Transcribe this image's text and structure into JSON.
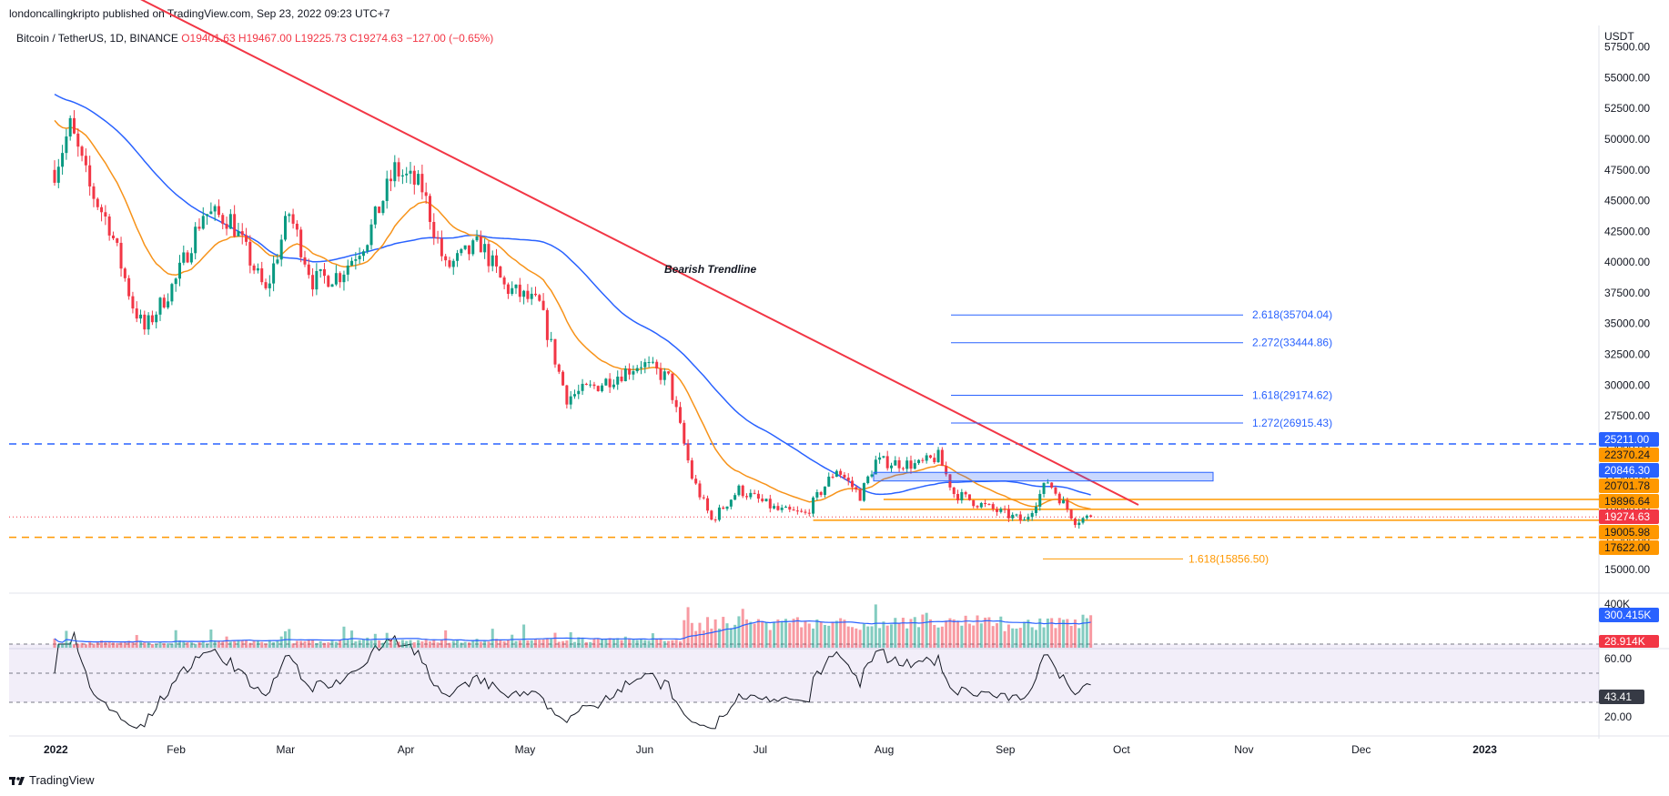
{
  "header": {
    "published_line": "londoncallingkripto published on TradingView.com, Sep 23, 2022 09:23 UTC+7"
  },
  "legend": {
    "symbol": "Bitcoin / TetherUS, 1D, BINANCE",
    "open": "O19401.63",
    "high": "H19467.00",
    "low": "L19225.73",
    "close": "C19274.63",
    "change": "−127.00 (−0.65%)"
  },
  "footer": {
    "brand": "TradingView",
    "logo_icon": "tradingview-logo-icon"
  },
  "chart_data": {
    "type": "candlestick",
    "symbol": "BTCUSDT",
    "interval": "1D",
    "exchange": "BINANCE",
    "currency": "USDT",
    "price_axis_ticks": [
      "57500.00",
      "55000.00",
      "52500.00",
      "50000.00",
      "47500.00",
      "45000.00",
      "42500.00",
      "40000.00",
      "37500.00",
      "35000.00",
      "32500.00",
      "30000.00",
      "27500.00",
      "25000.00",
      "22500.00",
      "20000.00",
      "17500.00",
      "15000.00"
    ],
    "price_range": [
      13000,
      60000
    ],
    "time_axis_labels": [
      "2022",
      "Feb",
      "Mar",
      "Apr",
      "May",
      "Jun",
      "Jul",
      "Aug",
      "Sep",
      "Oct",
      "Nov",
      "Dec",
      "2023"
    ],
    "price_path": [
      {
        "date": "2022-01-01",
        "close": 47500
      },
      {
        "date": "2022-01-05",
        "close": 51000
      },
      {
        "date": "2022-01-10",
        "close": 46000
      },
      {
        "date": "2022-01-15",
        "close": 43000
      },
      {
        "date": "2022-01-21",
        "close": 36500
      },
      {
        "date": "2022-01-24",
        "close": 34500
      },
      {
        "date": "2022-02-01",
        "close": 38500
      },
      {
        "date": "2022-02-08",
        "close": 44000
      },
      {
        "date": "2022-02-15",
        "close": 43500
      },
      {
        "date": "2022-02-24",
        "close": 37500
      },
      {
        "date": "2022-03-02",
        "close": 44000
      },
      {
        "date": "2022-03-08",
        "close": 38500
      },
      {
        "date": "2022-03-15",
        "close": 39000
      },
      {
        "date": "2022-03-22",
        "close": 42000
      },
      {
        "date": "2022-03-29",
        "close": 47500
      },
      {
        "date": "2022-04-05",
        "close": 46000
      },
      {
        "date": "2022-04-11",
        "close": 39500
      },
      {
        "date": "2022-04-20",
        "close": 41500
      },
      {
        "date": "2022-04-26",
        "close": 38000
      },
      {
        "date": "2022-05-05",
        "close": 36500
      },
      {
        "date": "2022-05-10",
        "close": 31000
      },
      {
        "date": "2022-05-12",
        "close": 29000
      },
      {
        "date": "2022-05-20",
        "close": 30000
      },
      {
        "date": "2022-05-31",
        "close": 31800
      },
      {
        "date": "2022-06-07",
        "close": 30500
      },
      {
        "date": "2022-06-13",
        "close": 22500
      },
      {
        "date": "2022-06-18",
        "close": 19000
      },
      {
        "date": "2022-06-25",
        "close": 21500
      },
      {
        "date": "2022-07-05",
        "close": 19800
      },
      {
        "date": "2022-07-12",
        "close": 19500
      },
      {
        "date": "2022-07-20",
        "close": 23200
      },
      {
        "date": "2022-07-26",
        "close": 21000
      },
      {
        "date": "2022-07-30",
        "close": 23800
      },
      {
        "date": "2022-08-10",
        "close": 23500
      },
      {
        "date": "2022-08-15",
        "close": 24200
      },
      {
        "date": "2022-08-19",
        "close": 21200
      },
      {
        "date": "2022-08-28",
        "close": 20000
      },
      {
        "date": "2022-09-06",
        "close": 18900
      },
      {
        "date": "2022-09-12",
        "close": 22200
      },
      {
        "date": "2022-09-19",
        "close": 19000
      },
      {
        "date": "2022-09-23",
        "close": 19274.63
      }
    ],
    "bearish_trendline": {
      "label": "Bearish Trendline",
      "start": {
        "date": "2021-12-29",
        "price": 60000
      },
      "end": {
        "date": "2022-09-25",
        "price": 20000
      }
    },
    "horizontal_levels": [
      {
        "price": 25211.0,
        "label": "25211.00",
        "color": "#2962ff",
        "style": "dashed"
      },
      {
        "price": 22370.24,
        "label": "22370.24",
        "color": "#ff9800",
        "style": "tag"
      },
      {
        "price": 20846.3,
        "label": "20846.30",
        "color": "#2962ff",
        "style": "tag"
      },
      {
        "price": 20701.78,
        "label": "20701.78",
        "color": "#ff9800",
        "style": "solid"
      },
      {
        "price": 19896.64,
        "label": "19896.64",
        "color": "#ff9800",
        "style": "solid"
      },
      {
        "price": 19274.63,
        "label": "19274.63",
        "color": "#f23645",
        "style": "dotted"
      },
      {
        "price": 19005.98,
        "label": "19005.98",
        "color": "#ff9800",
        "style": "solid"
      },
      {
        "price": 17622.0,
        "label": "17622.00",
        "color": "#ff9800",
        "style": "dashed"
      }
    ],
    "fib_extensions": [
      {
        "label": "2.618(35704.04)",
        "price": 35704.04,
        "color": "#2962ff"
      },
      {
        "label": "2.272(33444.86)",
        "price": 33444.86,
        "color": "#2962ff"
      },
      {
        "label": "1.618(29174.62)",
        "price": 29174.62,
        "color": "#2962ff"
      },
      {
        "label": "1.272(26915.43)",
        "price": 26915.43,
        "color": "#2962ff"
      },
      {
        "label": "1.618(15856.50)",
        "price": 15856.5,
        "color": "#ff9800"
      }
    ],
    "resistance_box": {
      "from": "2022-07-27",
      "to": "2022-10-20",
      "low": 22200,
      "high": 22900
    },
    "volume": {
      "axis_label": "400K",
      "volume_ma_tag": "300.415K",
      "last_volume_tag": "28.914K"
    },
    "rsi": {
      "axis_ticks": [
        "60.00",
        "20.00"
      ],
      "value_tag": "43.41",
      "upper": 70,
      "lower": 30
    }
  }
}
